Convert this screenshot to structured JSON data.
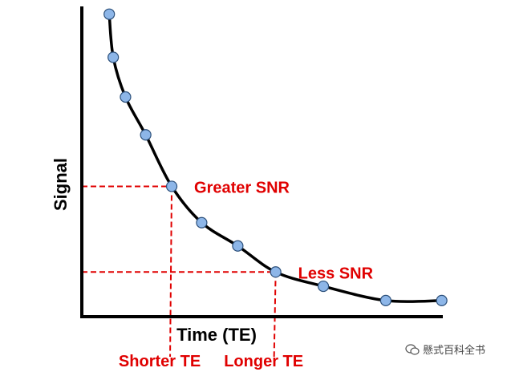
{
  "chart_data": {
    "type": "scatter",
    "title": "",
    "xlabel": "Time (TE)",
    "ylabel": "Signal",
    "grid": false,
    "legend": "none",
    "x_ticks": [],
    "y_ticks": [],
    "xlim": [
      0,
      10
    ],
    "ylim": [
      0,
      10
    ],
    "points": [
      {
        "x": 0.76,
        "y": 9.75
      },
      {
        "x": 0.87,
        "y": 8.36
      },
      {
        "x": 1.21,
        "y": 7.08
      },
      {
        "x": 1.77,
        "y": 5.86
      },
      {
        "x": 2.49,
        "y": 4.2
      },
      {
        "x": 3.32,
        "y": 3.03
      },
      {
        "x": 4.32,
        "y": 2.28
      },
      {
        "x": 5.37,
        "y": 1.44
      },
      {
        "x": 6.69,
        "y": 0.98
      },
      {
        "x": 8.42,
        "y": 0.52
      },
      {
        "x": 9.97,
        "y": 0.52
      }
    ],
    "fit_curve": "decay",
    "annotations": [
      {
        "label": "Greater SNR",
        "te_label": "Shorter TE",
        "x": 2.49,
        "y": 4.2
      },
      {
        "label": "Less SNR",
        "te_label": "Longer TE",
        "x": 5.37,
        "y": 1.44
      }
    ],
    "colors": {
      "points": "#8db6e8",
      "point_border": "#2b4f7a",
      "annotations": "#e00000",
      "axes": "#000000"
    }
  },
  "watermark": {
    "text": "懸式百科全书",
    "icon": "wechat-icon"
  }
}
